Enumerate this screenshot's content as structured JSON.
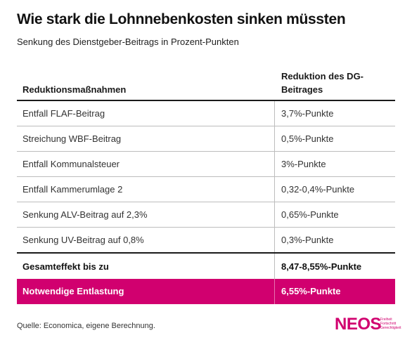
{
  "title": "Wie stark die Lohnnebenkosten sinken müssten",
  "subtitle": "Senkung des Dienstgeber-Beitrags in Prozent-Punkten",
  "colors": {
    "accent": "#d1006f",
    "text": "#1a1a1a"
  },
  "table": {
    "headers": [
      "Reduktionsmaßnahmen",
      "Reduktion des DG-Beitrages"
    ],
    "rows": [
      {
        "measure": "Entfall FLAF-Beitrag",
        "value": "3,7%-Punkte"
      },
      {
        "measure": "Streichung WBF-Beitrag",
        "value": "0,5%-Punkte"
      },
      {
        "measure": "Entfall Kommunalsteuer",
        "value": "3%-Punkte"
      },
      {
        "measure": "Entfall Kammerumlage 2",
        "value": "0,32-0,4%-Punkte"
      },
      {
        "measure": "Senkung ALV-Beitrag auf 2,3%",
        "value": "0,65%-Punkte"
      },
      {
        "measure": "Senkung UV-Beitrag auf 0,8%",
        "value": "0,3%-Punkte"
      }
    ],
    "total": {
      "measure": "Gesamteffekt bis zu",
      "value": "8,47-8,55%-Punkte"
    },
    "highlight": {
      "measure": "Notwendige Entlastung",
      "value": "6,55%-Punkte"
    }
  },
  "footer": {
    "source": "Quelle: Economica, eigene Berechnung.",
    "logo_text": "NEOS",
    "logo_tagline": "Freiheit Fortschritt Gerechtigkeit"
  }
}
